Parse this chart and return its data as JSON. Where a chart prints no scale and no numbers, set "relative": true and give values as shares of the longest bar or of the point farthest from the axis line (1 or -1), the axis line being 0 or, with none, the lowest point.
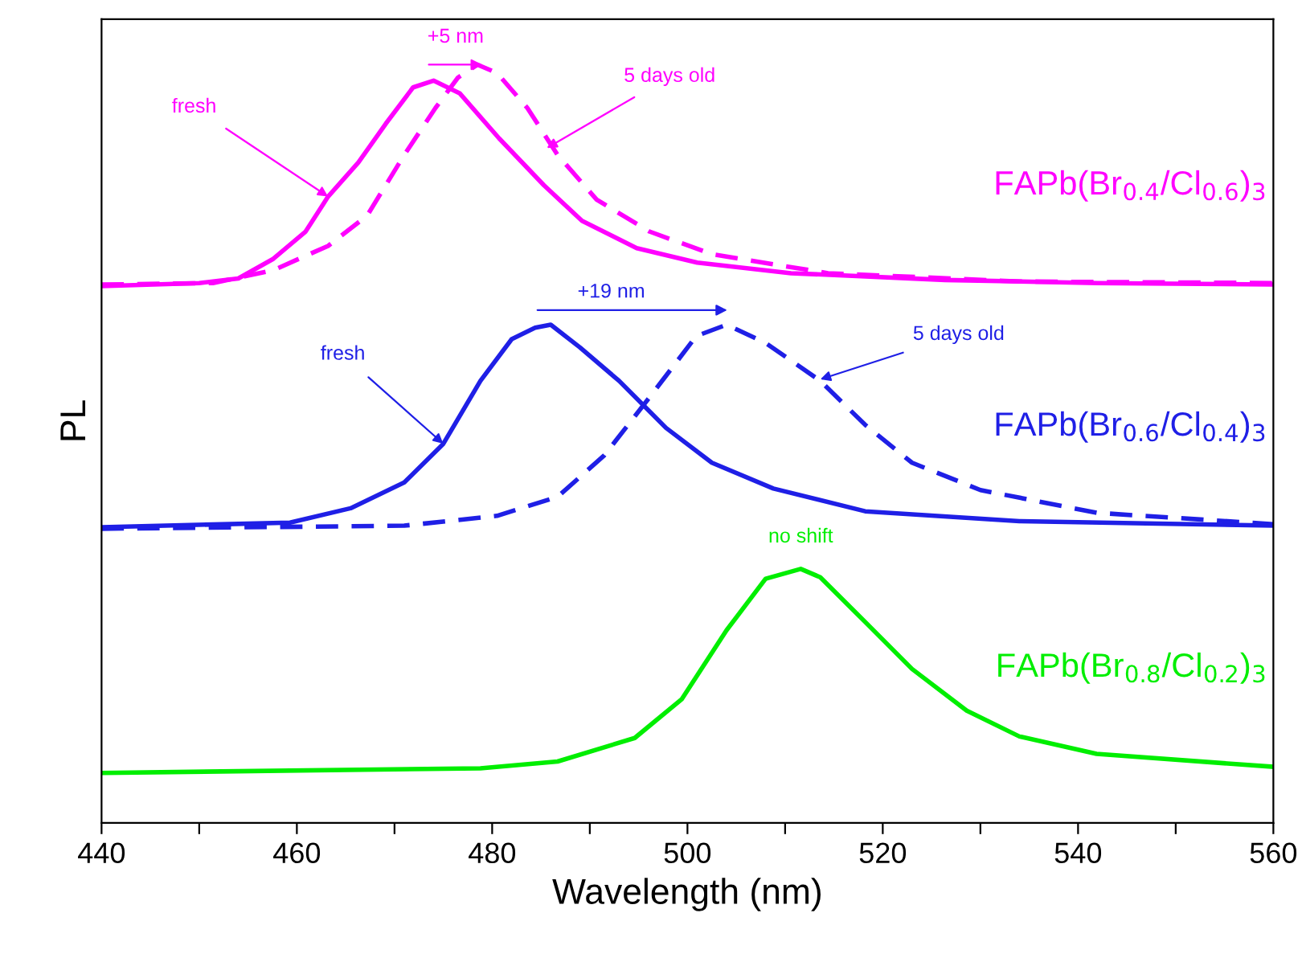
{
  "chart_data": {
    "type": "line",
    "relative": true,
    "xlabel": "Wavelength (nm)",
    "ylabel": "PL",
    "xlim": [
      440,
      560
    ],
    "xticks": [
      440,
      {
        "value": 450,
        "label": null
      },
      460,
      {
        "value": 470,
        "label": null
      },
      480,
      {
        "value": 490,
        "label": null
      },
      500,
      {
        "value": 510,
        "label": null
      },
      520,
      {
        "value": 530,
        "label": null
      },
      540,
      {
        "value": 550,
        "label": null
      },
      560
    ],
    "tick_labels": "x",
    "grid": false,
    "marker": "none",
    "series": [
      {
        "name": "FAPb(Br$_{0.4}$/Cl$_{0.6}$)$_{3}$",
        "color": "#ff00ff",
        "line_style": "solid",
        "x": [
          440,
          450,
          454,
          457.6,
          460.9,
          463.2,
          466.3,
          469.1,
          471.9,
          474,
          476.7,
          480.7,
          485.3,
          489.2,
          494.8,
          501,
          510.6,
          526.4,
          542,
          560
        ],
        "values": [
          0.708,
          0.712,
          0.718,
          0.744,
          0.78,
          0.826,
          0.871,
          0.922,
          0.97,
          0.979,
          0.962,
          0.903,
          0.841,
          0.794,
          0.758,
          0.739,
          0.725,
          0.716,
          0.712,
          0.71
        ]
      },
      {
        "color": "#ff00ff",
        "line_style": "dashed",
        "x": [
          440,
          451.4,
          457.6,
          463.2,
          467.2,
          471,
          474.2,
          476.5,
          478.5,
          480.5,
          483.6,
          486.7,
          490.7,
          496.1,
          502.5,
          514.4,
          534,
          560
        ],
        "values": [
          0.71,
          0.712,
          0.729,
          0.761,
          0.801,
          0.881,
          0.943,
          0.983,
          1.0,
          0.989,
          0.943,
          0.881,
          0.822,
          0.78,
          0.75,
          0.725,
          0.714,
          0.712
        ]
      },
      {
        "name": "FAPb(Br$_{0.6}$/Cl$_{0.4}$)$_{3}$",
        "color": "#1f1fe6",
        "line_style": "solid",
        "x": [
          440,
          459.3,
          465.5,
          471,
          475,
          478.8,
          482,
          484.4,
          486,
          489,
          493,
          497.8,
          502.5,
          508.8,
          518.2,
          534,
          560
        ],
        "values": [
          0.39,
          0.396,
          0.415,
          0.449,
          0.5,
          0.583,
          0.638,
          0.653,
          0.657,
          0.627,
          0.583,
          0.521,
          0.475,
          0.441,
          0.411,
          0.398,
          0.392
        ]
      },
      {
        "color": "#1f1fe6",
        "line_style": "dashed",
        "x": [
          440,
          471,
          480.5,
          486.7,
          491.5,
          496.1,
          500.9,
          504,
          508,
          513.6,
          518.2,
          523,
          530,
          541.9,
          560
        ],
        "values": [
          0.388,
          0.392,
          0.405,
          0.43,
          0.485,
          0.561,
          0.642,
          0.657,
          0.633,
          0.583,
          0.525,
          0.475,
          0.439,
          0.409,
          0.394
        ]
      },
      {
        "name": "FAPb(Br$_{0.8}$/Cl$_{0.2}$)$_{3}$",
        "color": "#00ee00",
        "line_style": "solid",
        "x": [
          440,
          478.8,
          486.7,
          494.6,
          499.4,
          504,
          508,
          511.6,
          513.6,
          518.2,
          523,
          528.6,
          534,
          541.9,
          560
        ],
        "values": [
          0.066,
          0.072,
          0.081,
          0.112,
          0.163,
          0.254,
          0.322,
          0.335,
          0.324,
          0.265,
          0.203,
          0.148,
          0.114,
          0.091,
          0.074
        ]
      }
    ],
    "annotations": [
      {
        "text": "fresh",
        "x": 463.2,
        "y": 0.826
      },
      {
        "text": "5 days old",
        "x": 485.6,
        "y": 0.89
      },
      {
        "text": "+5 nm",
        "x": 479,
        "y": 1.0
      },
      {
        "text": "fresh",
        "x": 475,
        "y": 0.5
      },
      {
        "text": "5 days old",
        "x": 513.6,
        "y": 0.585
      },
      "+19 nm",
      {
        "text": "no shift",
        "x": 511.6,
        "y": 0.335
      }
    ]
  }
}
